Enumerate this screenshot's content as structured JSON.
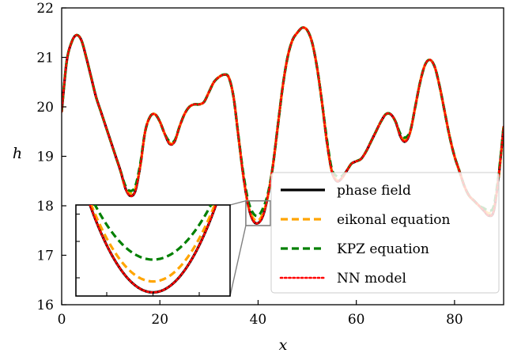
{
  "chart_data": {
    "type": "line",
    "xlabel": "x",
    "ylabel": "h",
    "xlim": [
      0,
      90
    ],
    "ylim": [
      16,
      22
    ],
    "xticks": [
      "0",
      "20",
      "40",
      "60",
      "80"
    ],
    "yticks": [
      "16",
      "17",
      "18",
      "19",
      "20",
      "21",
      "22"
    ],
    "grid": false,
    "legend_position": "lower-right",
    "x": [
      0,
      1,
      2,
      3,
      4,
      5,
      6,
      7,
      8,
      9,
      10,
      11,
      12,
      13,
      14,
      15,
      16,
      17,
      18,
      19,
      20,
      21,
      22,
      23,
      24,
      25,
      26,
      27,
      28,
      29,
      30,
      31,
      32,
      33,
      34,
      35,
      36,
      37,
      38,
      39,
      40,
      41,
      42,
      43,
      44,
      45,
      46,
      47,
      48,
      49,
      50,
      51,
      52,
      53,
      54,
      55,
      56,
      57,
      58,
      59,
      60,
      61,
      62,
      63,
      64,
      65,
      66,
      67,
      68,
      69,
      70,
      71,
      72,
      73,
      74,
      75,
      76,
      77,
      78,
      79,
      80,
      81,
      82,
      83,
      84,
      85,
      86,
      87,
      88,
      89,
      90
    ],
    "series": [
      {
        "name": "phase field",
        "color": "#000000",
        "dash": "solid",
        "values": [
          19.9,
          20.9,
          21.3,
          21.45,
          21.35,
          21.0,
          20.6,
          20.2,
          19.9,
          19.6,
          19.3,
          19.0,
          18.7,
          18.35,
          18.2,
          18.3,
          18.8,
          19.5,
          19.8,
          19.85,
          19.7,
          19.45,
          19.25,
          19.3,
          19.6,
          19.85,
          20.0,
          20.05,
          20.05,
          20.1,
          20.3,
          20.5,
          20.6,
          20.65,
          20.6,
          20.2,
          19.4,
          18.6,
          18.0,
          17.7,
          17.65,
          17.8,
          18.2,
          18.8,
          19.6,
          20.4,
          21.0,
          21.35,
          21.5,
          21.6,
          21.55,
          21.3,
          20.8,
          20.1,
          19.3,
          18.7,
          18.5,
          18.55,
          18.7,
          18.85,
          18.9,
          18.95,
          19.1,
          19.3,
          19.5,
          19.7,
          19.85,
          19.85,
          19.7,
          19.4,
          19.3,
          19.5,
          20.0,
          20.5,
          20.85,
          20.95,
          20.8,
          20.4,
          19.9,
          19.4,
          19.0,
          18.7,
          18.4,
          18.2,
          18.1,
          18.0,
          17.9,
          17.8,
          17.9,
          18.6,
          19.6
        ]
      },
      {
        "name": "eikonal equation",
        "color": "#ffa500",
        "dash": "dashed",
        "values": [
          19.9,
          20.9,
          21.3,
          21.45,
          21.35,
          21.0,
          20.6,
          20.2,
          19.9,
          19.6,
          19.3,
          19.0,
          18.7,
          18.35,
          18.25,
          18.35,
          18.8,
          19.5,
          19.8,
          19.85,
          19.7,
          19.45,
          19.27,
          19.3,
          19.6,
          19.85,
          20.0,
          20.05,
          20.05,
          20.1,
          20.3,
          20.5,
          20.6,
          20.65,
          20.6,
          20.2,
          19.4,
          18.6,
          18.0,
          17.75,
          17.7,
          17.85,
          18.2,
          18.8,
          19.6,
          20.4,
          21.0,
          21.35,
          21.5,
          21.6,
          21.55,
          21.3,
          20.8,
          20.1,
          19.3,
          18.7,
          18.52,
          18.55,
          18.7,
          18.85,
          18.9,
          18.95,
          19.1,
          19.3,
          19.5,
          19.7,
          19.85,
          19.85,
          19.7,
          19.42,
          19.33,
          19.5,
          20.0,
          20.5,
          20.85,
          20.95,
          20.8,
          20.4,
          19.9,
          19.4,
          19.0,
          18.7,
          18.4,
          18.2,
          18.1,
          18.0,
          17.92,
          17.85,
          17.95,
          18.6,
          19.6
        ]
      },
      {
        "name": "KPZ equation",
        "color": "#008000",
        "dash": "dashed",
        "values": [
          19.9,
          20.9,
          21.3,
          21.45,
          21.35,
          21.0,
          20.6,
          20.2,
          19.9,
          19.6,
          19.3,
          19.0,
          18.7,
          18.4,
          18.3,
          18.4,
          18.85,
          19.5,
          19.8,
          19.85,
          19.7,
          19.45,
          19.3,
          19.32,
          19.6,
          19.85,
          20.0,
          20.05,
          20.05,
          20.1,
          20.3,
          20.5,
          20.6,
          20.65,
          20.6,
          20.2,
          19.4,
          18.65,
          18.1,
          17.85,
          17.8,
          17.95,
          18.25,
          18.8,
          19.6,
          20.4,
          21.0,
          21.35,
          21.5,
          21.6,
          21.55,
          21.3,
          20.8,
          20.1,
          19.35,
          18.75,
          18.6,
          18.6,
          18.7,
          18.85,
          18.9,
          18.95,
          19.1,
          19.3,
          19.5,
          19.7,
          19.85,
          19.85,
          19.7,
          19.45,
          19.38,
          19.52,
          20.0,
          20.5,
          20.85,
          20.95,
          20.8,
          20.4,
          19.9,
          19.4,
          19.0,
          18.7,
          18.4,
          18.2,
          18.1,
          18.0,
          17.95,
          17.9,
          18.0,
          18.65,
          19.6
        ]
      },
      {
        "name": "NN model",
        "color": "#ff0000",
        "dash": "dotted",
        "values": [
          19.9,
          20.9,
          21.3,
          21.45,
          21.35,
          21.0,
          20.6,
          20.2,
          19.9,
          19.6,
          19.3,
          19.0,
          18.7,
          18.35,
          18.2,
          18.3,
          18.8,
          19.5,
          19.8,
          19.85,
          19.7,
          19.45,
          19.25,
          19.3,
          19.6,
          19.85,
          20.0,
          20.05,
          20.05,
          20.1,
          20.3,
          20.5,
          20.6,
          20.65,
          20.6,
          20.2,
          19.4,
          18.6,
          18.0,
          17.7,
          17.65,
          17.8,
          18.2,
          18.8,
          19.6,
          20.4,
          21.0,
          21.35,
          21.5,
          21.6,
          21.55,
          21.3,
          20.8,
          20.1,
          19.3,
          18.7,
          18.5,
          18.55,
          18.7,
          18.85,
          18.9,
          18.95,
          19.1,
          19.3,
          19.5,
          19.7,
          19.85,
          19.85,
          19.7,
          19.4,
          19.3,
          19.5,
          20.0,
          20.5,
          20.85,
          20.95,
          20.8,
          20.4,
          19.9,
          19.4,
          19.0,
          18.7,
          18.4,
          18.2,
          18.1,
          18.0,
          17.9,
          17.8,
          17.9,
          18.6,
          19.6
        ]
      }
    ],
    "inset": {
      "xlim": [
        37.5,
        42.5
      ],
      "ylim": [
        17.6,
        18.1
      ],
      "source_region_xlim": [
        37.5,
        42.5
      ],
      "source_region_ylim": [
        17.6,
        18.1
      ]
    }
  }
}
